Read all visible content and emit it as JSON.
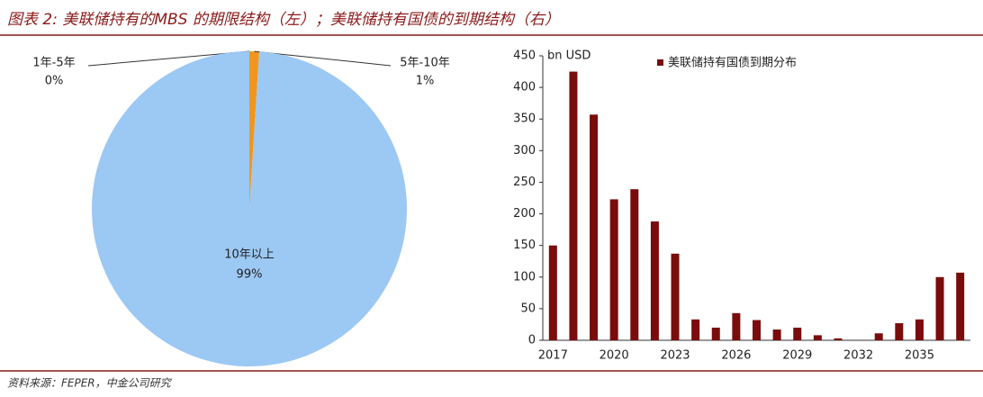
{
  "title": "图表 2: 美联储持有的MBS 的期限结构（左）；美联储持有国债的到期结构（右）",
  "source": "资料来源：FEPER，中金公司研究",
  "chart_data": [
    {
      "type": "pie",
      "categories": [
        "1年-5年",
        "5年-10年",
        "10年以上"
      ],
      "values": [
        0,
        1,
        99
      ],
      "value_labels": [
        "0%",
        "1%",
        "99%"
      ],
      "colors": [
        "#3366cc",
        "#f0961e",
        "#9cc8f4"
      ]
    },
    {
      "type": "bar",
      "categories": [
        "2017",
        null,
        null,
        "2020",
        null,
        null,
        "2023",
        null,
        null,
        "2026",
        null,
        null,
        "2029",
        null,
        null,
        "2032",
        null,
        null,
        "2035",
        null,
        null
      ],
      "series": [
        {
          "name": "美联储持有国债到期分布",
          "color": "#7a0c0c",
          "values": [
            150,
            425,
            357,
            223,
            239,
            188,
            137,
            33,
            20,
            43,
            32,
            17,
            20,
            8,
            3,
            0,
            11,
            27,
            33,
            100,
            107
          ]
        }
      ],
      "y_label": "bn USD",
      "ylim": [
        0,
        450
      ],
      "yticks": [
        0,
        50,
        100,
        150,
        200,
        250,
        300,
        350,
        400,
        450
      ]
    }
  ]
}
